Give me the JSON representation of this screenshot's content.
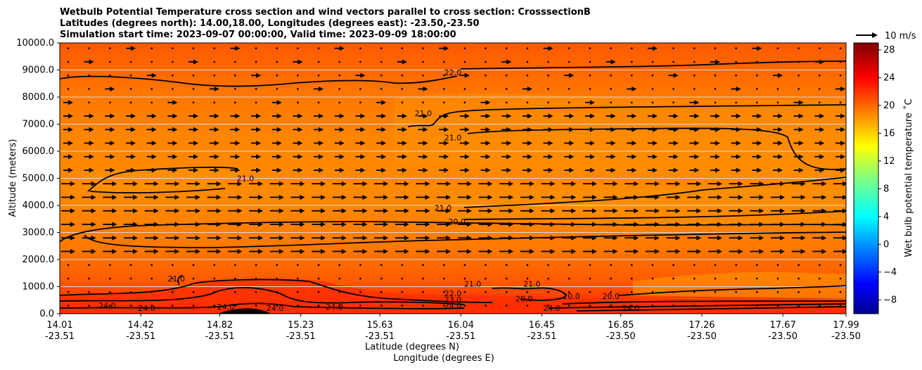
{
  "chart_data": {
    "type": "contour",
    "title_lines": [
      "Wetbulb Potential Temperature cross section and wind vectors parallel to cross section: CrosssectionB",
      "Latitudes (degrees north): 14.00,18.00, Longitudes (degrees east): -23.50,-23.50",
      "Simulation start time: 2023-09-07 00:00:00, Valid time: 2023-09-09 18:00:00"
    ],
    "xlabel_lat": "Latitude (degrees N)",
    "xlabel_lon": "Longitude (degrees E)",
    "ylabel": "Altitude (meters)",
    "ylim": [
      0,
      10000
    ],
    "yticks": [
      "0.0",
      "1000.0",
      "2000.0",
      "3000.0",
      "4000.0",
      "5000.0",
      "6000.0",
      "7000.0",
      "8000.0",
      "9000.0",
      "10000.0"
    ],
    "xlim": [
      14.01,
      17.99
    ],
    "x_ticks": [
      {
        "lat": "14.01",
        "lon": "-23.51",
        "value": 14.01
      },
      {
        "lat": "14.42",
        "lon": "-23.51",
        "value": 14.42
      },
      {
        "lat": "14.82",
        "lon": "-23.51",
        "value": 14.82
      },
      {
        "lat": "15.23",
        "lon": "-23.51",
        "value": 15.23
      },
      {
        "lat": "15.63",
        "lon": "-23.51",
        "value": 15.63
      },
      {
        "lat": "16.04",
        "lon": "-23.51",
        "value": 16.04
      },
      {
        "lat": "16.45",
        "lon": "-23.51",
        "value": 16.45
      },
      {
        "lat": "16.85",
        "lon": "-23.50",
        "value": 16.85
      },
      {
        "lat": "17.26",
        "lon": "-23.50",
        "value": 17.26
      },
      {
        "lat": "17.67",
        "lon": "-23.50",
        "value": 17.67
      },
      {
        "lat": "17.99",
        "lon": "-23.50",
        "value": 17.99
      }
    ],
    "colorbar": {
      "label": "Wet bulb potential temperature ˚C",
      "range": [
        -10,
        29
      ],
      "ticks": [
        "−8",
        "−4",
        "0",
        "4",
        "8",
        "12",
        "16",
        "20",
        "24",
        "28"
      ],
      "tick_values": [
        -8,
        -4,
        0,
        4,
        8,
        12,
        16,
        20,
        24,
        28
      ]
    },
    "wind_key": {
      "label": "10 m/s",
      "speed": 10
    },
    "contour_levels": [
      20.0,
      21.0,
      22.0,
      23.0,
      24.0
    ],
    "contour_labels": [
      {
        "text": "22.0",
        "x": 16.0,
        "alt": 8800
      },
      {
        "text": "21.0",
        "x": 15.85,
        "alt": 7300
      },
      {
        "text": "21.0",
        "x": 16.0,
        "alt": 6400
      },
      {
        "text": "21.0",
        "x": 14.95,
        "alt": 4900
      },
      {
        "text": "21.0",
        "x": 15.95,
        "alt": 3800
      },
      {
        "text": "20.0",
        "x": 16.02,
        "alt": 3300
      },
      {
        "text": "21.0",
        "x": 14.6,
        "alt": 1200
      },
      {
        "text": "22.0",
        "x": 16.0,
        "alt": 650
      },
      {
        "text": "23.0",
        "x": 16.0,
        "alt": 420
      },
      {
        "text": "24.0",
        "x": 16.0,
        "alt": 200
      },
      {
        "text": "21.0",
        "x": 16.1,
        "alt": 1000
      },
      {
        "text": "21.0",
        "x": 16.4,
        "alt": 1000
      },
      {
        "text": "20.0",
        "x": 16.36,
        "alt": 450
      },
      {
        "text": "24.0",
        "x": 16.5,
        "alt": 100
      },
      {
        "text": "20.0",
        "x": 16.6,
        "alt": 550
      },
      {
        "text": "20.0",
        "x": 16.8,
        "alt": 550
      },
      {
        "text": "24.0",
        "x": 16.9,
        "alt": 100
      },
      {
        "text": "24.0",
        "x": 14.25,
        "alt": 200
      },
      {
        "text": "24.0",
        "x": 14.45,
        "alt": 100
      },
      {
        "text": "24.0",
        "x": 14.85,
        "alt": 150
      },
      {
        "text": "24.0",
        "x": 15.1,
        "alt": 100
      },
      {
        "text": "24.0",
        "x": 15.4,
        "alt": 150
      }
    ],
    "field_description_values": {
      "upper_temp": 22.5,
      "mid_temp": 21.0,
      "boundary_layer_temp": 24.5
    }
  }
}
